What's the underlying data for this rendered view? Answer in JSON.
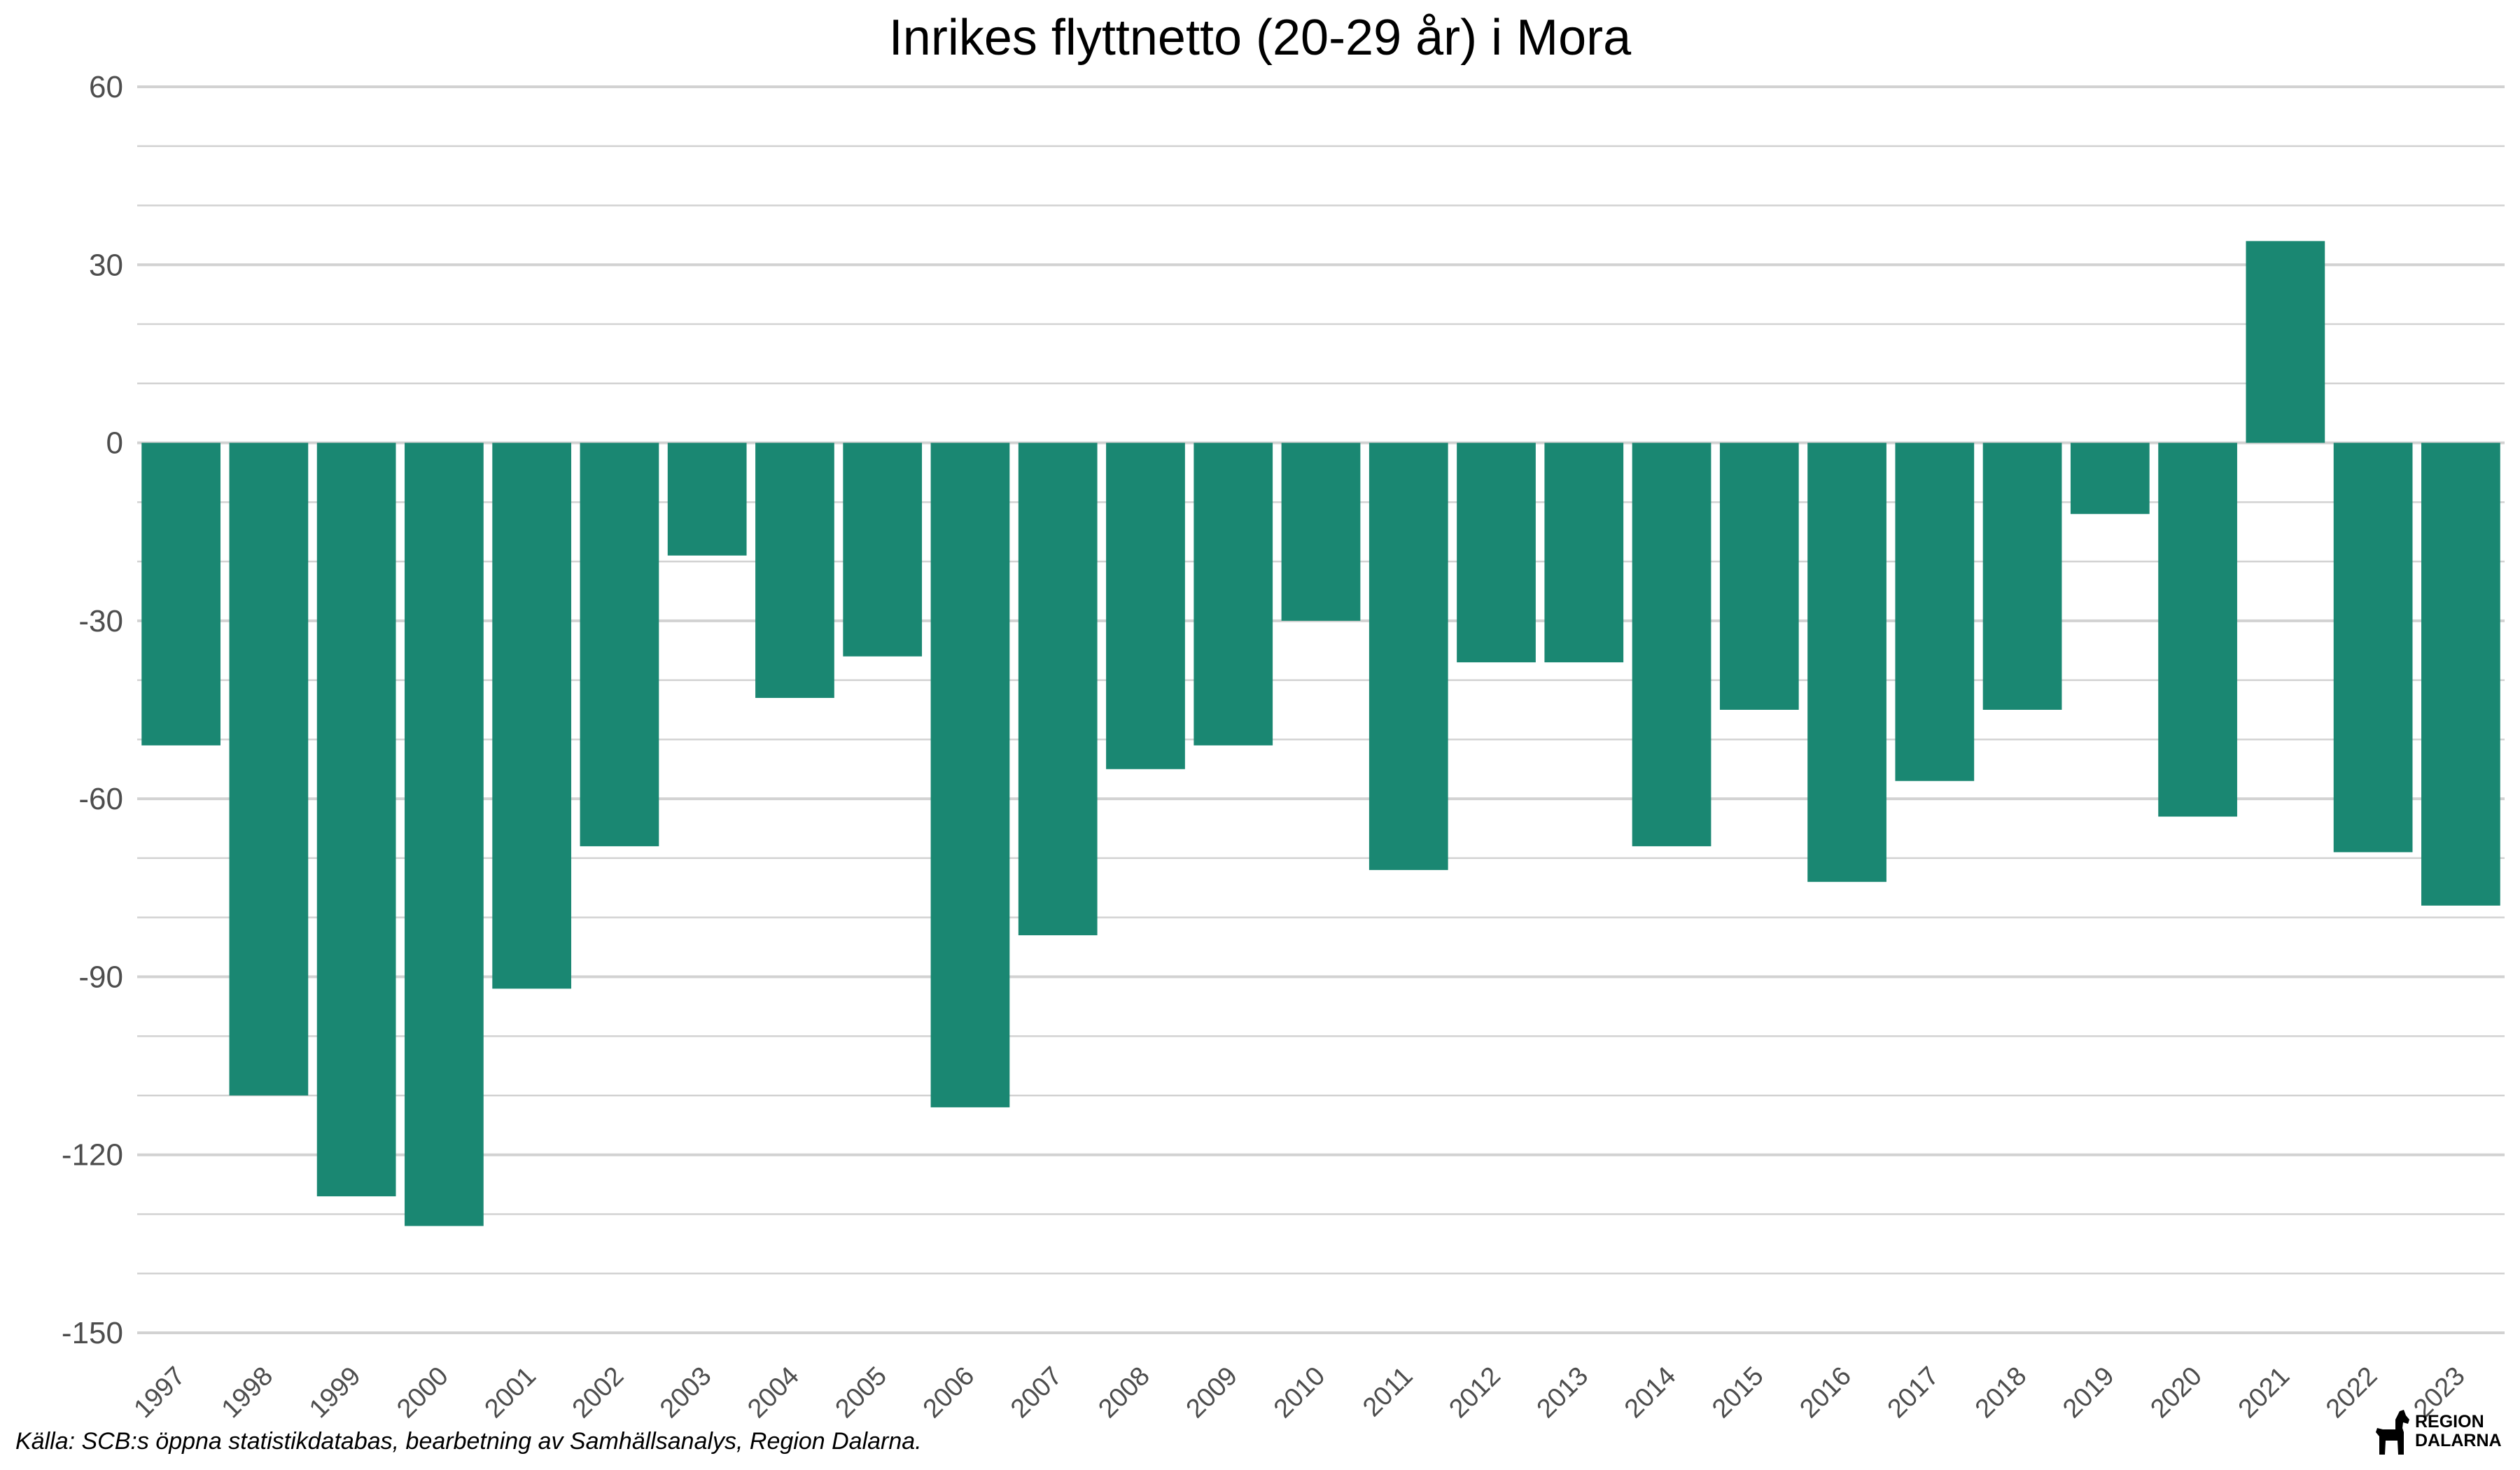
{
  "chart_data": {
    "type": "bar",
    "title": "Inrikes flyttnetto (20-29 år) i Mora",
    "xlabel": "",
    "ylabel": "",
    "categories": [
      "1997",
      "1998",
      "1999",
      "2000",
      "2001",
      "2002",
      "2003",
      "2004",
      "2005",
      "2006",
      "2007",
      "2008",
      "2009",
      "2010",
      "2011",
      "2012",
      "2013",
      "2014",
      "2015",
      "2016",
      "2017",
      "2018",
      "2019",
      "2020",
      "2021",
      "2022",
      "2023"
    ],
    "values": [
      -51,
      -110,
      -127,
      -132,
      -92,
      -68,
      -19,
      -43,
      -36,
      -112,
      -83,
      -55,
      -51,
      -30,
      -72,
      -37,
      -37,
      -68,
      -45,
      -74,
      -57,
      -45,
      -12,
      -63,
      34,
      -69,
      -78
    ],
    "ylim": [
      -150,
      60
    ],
    "yticks": [
      "60",
      "30",
      "0",
      "-30",
      "-60",
      "-90",
      "-120",
      "-150"
    ],
    "grid": true,
    "legend": "none",
    "bar_color": "#1a8772"
  },
  "source": "Källa: SCB:s öppna statistikdatabas, bearbetning av Samhällsanalys, Region Dalarna.",
  "logo": {
    "line1": "REGION",
    "line2": "DALARNA",
    "icon": "dala-horse-icon"
  }
}
